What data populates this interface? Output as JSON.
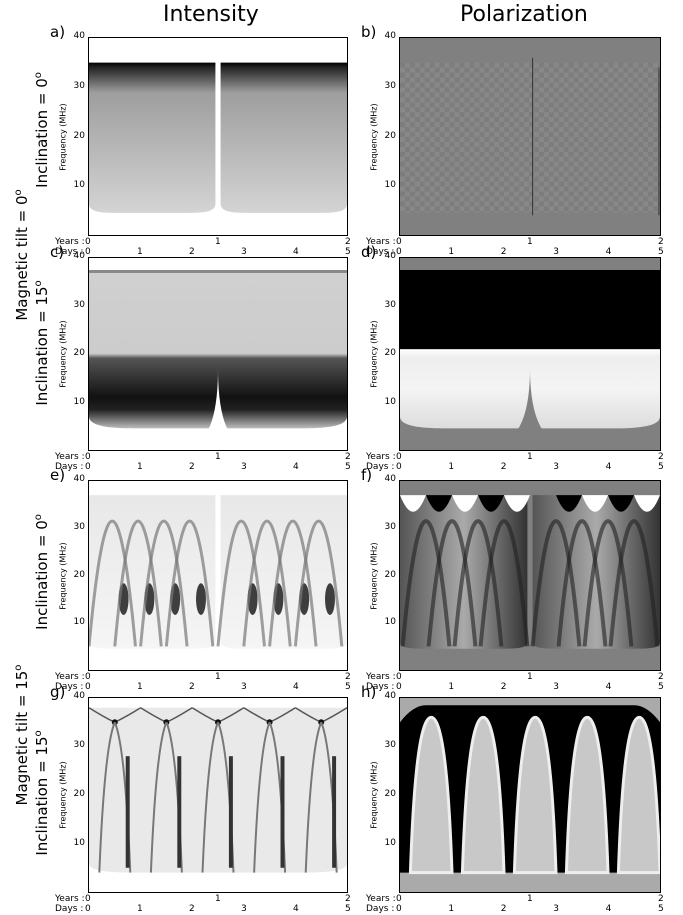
{
  "columns": {
    "left": "Intensity",
    "right": "Polarization"
  },
  "row_labels": {
    "tilt_0_prefix": "Magnetic tilt = 0",
    "tilt_15_prefix": "Magnetic tilt = 15",
    "incl_0_prefix": "Inclination = 0",
    "incl_15_prefix": "Inclination = 15",
    "degree": "o"
  },
  "axis": {
    "ylabel": "Frequency (MHz)",
    "years_label": "Years :",
    "days_label": "Days :",
    "year_ticks": [
      "0",
      "1",
      "2"
    ],
    "day_ticks": [
      "0",
      "1",
      "2",
      "3",
      "4",
      "5"
    ],
    "y_ticks": [
      "10",
      "20",
      "30",
      "40"
    ]
  },
  "panels": [
    {
      "id": "a",
      "label": "a)"
    },
    {
      "id": "b",
      "label": "b)"
    },
    {
      "id": "c",
      "label": "c)"
    },
    {
      "id": "d",
      "label": "d)"
    },
    {
      "id": "e",
      "label": "e)"
    },
    {
      "id": "f",
      "label": "f)"
    },
    {
      "id": "g",
      "label": "g)"
    },
    {
      "id": "h",
      "label": "h)"
    }
  ],
  "chart_data": {
    "type": "heatmap",
    "xlabel": "",
    "ylabel": "Frequency (MHz)",
    "ylim": [
      0,
      40
    ],
    "x_days_range": [
      0,
      5
    ],
    "x_years_range": [
      0,
      2
    ],
    "colormap": "grayscale",
    "rows": [
      {
        "tilt": 0,
        "inclination": 0,
        "panels": [
          "a",
          "b"
        ]
      },
      {
        "tilt": 0,
        "inclination": 15,
        "panels": [
          "c",
          "d"
        ]
      },
      {
        "tilt": 15,
        "inclination": 0,
        "panels": [
          "e",
          "f"
        ]
      },
      {
        "tilt": 15,
        "inclination": 15,
        "panels": [
          "g",
          "h"
        ]
      }
    ]
  }
}
